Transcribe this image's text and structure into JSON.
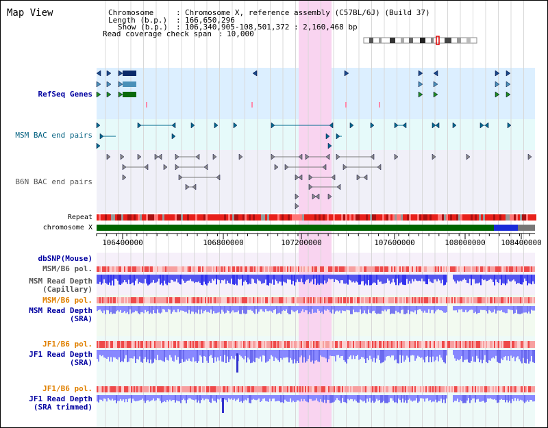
{
  "view_title": "Map View",
  "header": {
    "chromosome_label": "Chromosome",
    "chromosome_value": "Chromosome X, reference assembly (C57BL/6J) (Build 37)",
    "length_label": "Length (b.p.)",
    "length_value": "166,650,296",
    "show_label": "Show (b.p.)",
    "show_value": "106,340,905-108,501,372 : 2,160,468 bp",
    "span_label": "Read coverage check span",
    "span_value": "10,000"
  },
  "tracks": {
    "refseq": "RefSeq Genes",
    "msm_bac": "MSM BAC end pairs",
    "b6n_bac": "B6N BAC end pairs",
    "repeat": "Repeat",
    "chromosome": "chromosome X",
    "dbsnp": "dbSNP(Mouse)",
    "msm_b6_pol_1": "MSM/B6 pol.",
    "msm_depth_cap_1": "MSM Read Depth",
    "msm_depth_cap_2": "(Capillary)",
    "msm_b6_pol_2": "MSM/B6 pol.",
    "msm_depth_sra_1": "MSM Read Depth",
    "msm_depth_sra_2": "(SRA)",
    "jf1_b6_pol_1": "JF1/B6 pol.",
    "jf1_depth_sra_1": "JF1 Read Depth",
    "jf1_depth_sra_2": "(SRA)",
    "jf1_b6_pol_2": "JF1/B6 pol.",
    "jf1_depth_trim_1": "JF1 Read Depth",
    "jf1_depth_trim_2": "(SRA trimmed)"
  },
  "axis": {
    "ticks": [
      "106400000",
      "106800000",
      "107200000",
      "107600000",
      "108000000",
      "108400000"
    ]
  },
  "colors": {
    "refseq_bg": "#dcefff",
    "bac_bg": "#e6fafa",
    "b6n_bg": "#f0f0f8",
    "highlight": "#f9d4f0",
    "chromosome_bar": "#006400",
    "repeat_red": "#e8201a",
    "depth_blue": "#3333ee",
    "depth_lightblue": "#8888ff",
    "pol_red": "#ee4444"
  }
}
